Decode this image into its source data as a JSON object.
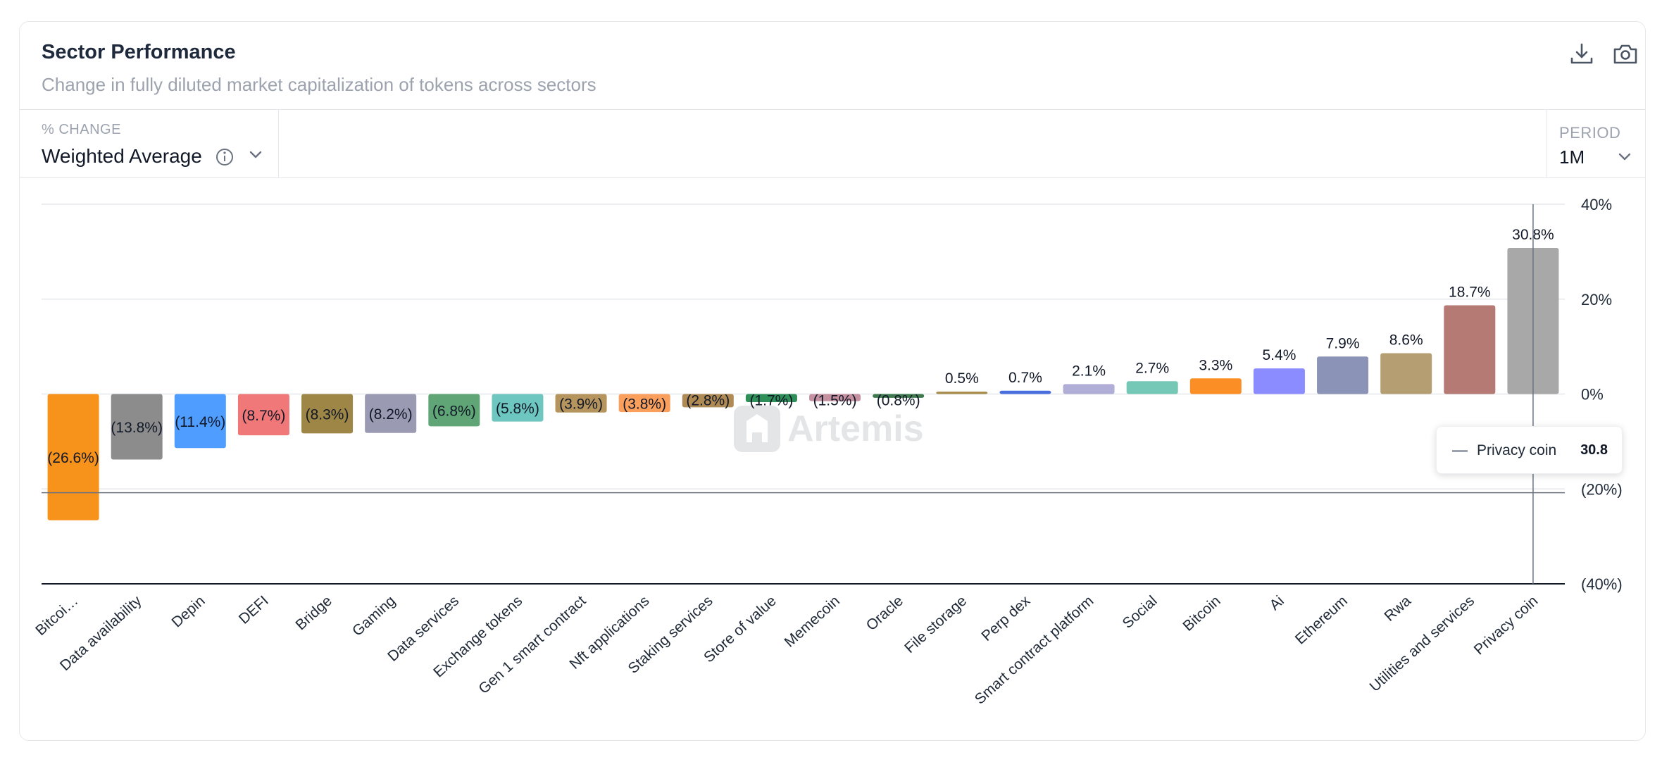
{
  "header": {
    "title": "Sector Performance",
    "subtitle": "Change in fully diluted market capitalization of tokens across sectors",
    "download_icon": "download-icon",
    "camera_icon": "camera-icon"
  },
  "controls": {
    "change_label": "% CHANGE",
    "change_value": "Weighted Average",
    "period_label": "PERIOD",
    "period_value": "1M"
  },
  "watermark": "Artemis",
  "tooltip": {
    "name": "Privacy coin",
    "value": "30.8"
  },
  "chart_data": {
    "type": "bar",
    "title": "Sector Performance",
    "categories": [
      "Bitcoi…",
      "Data availability",
      "Depin",
      "DEFI",
      "Bridge",
      "Gaming",
      "Data services",
      "Exchange tokens",
      "Gen 1 smart contract",
      "Nft applications",
      "Staking services",
      "Store of value",
      "Memecoin",
      "Oracle",
      "File storage",
      "Perp dex",
      "Smart contract platform",
      "Social",
      "Bitcoin",
      "Ai",
      "Ethereum",
      "Rwa",
      "Utilities and services",
      "Privacy coin"
    ],
    "values": [
      -26.6,
      -13.8,
      -11.4,
      -8.7,
      -8.3,
      -8.2,
      -6.8,
      -5.8,
      -3.9,
      -3.8,
      -2.8,
      -1.7,
      -1.5,
      -0.8,
      0.5,
      0.7,
      2.1,
      2.7,
      3.3,
      5.4,
      7.9,
      8.6,
      18.7,
      30.8
    ],
    "labels": [
      "(26.6%)",
      "(13.8%)",
      "(11.4%)",
      "(8.7%)",
      "(8.3%)",
      "(8.2%)",
      "(6.8%)",
      "(5.8%)",
      "(3.9%)",
      "(3.8%)",
      "(2.8%)",
      "(1.7%)",
      "(1.5%)",
      "(0.8%)",
      "0.5%",
      "0.7%",
      "2.1%",
      "2.7%",
      "3.3%",
      "5.4%",
      "7.9%",
      "8.6%",
      "18.7%",
      "30.8%"
    ],
    "colors": [
      "#f7931a",
      "#8c8c8c",
      "#4f9dff",
      "#f07878",
      "#9e8646",
      "#9a9ab2",
      "#5fa575",
      "#6ec6c1",
      "#b5955d",
      "#fb9f5c",
      "#b08a55",
      "#2f8f58",
      "#c590a0",
      "#3f7a4f",
      "#a88c4c",
      "#4a6ee0",
      "#b0aed6",
      "#76c8b6",
      "#fb8f25",
      "#8b8cff",
      "#8b93b6",
      "#b59f72",
      "#b57a74",
      "#a8a8a8"
    ],
    "y_ticks": [
      40,
      20,
      0,
      -20,
      -40
    ],
    "y_tick_labels": [
      "40%",
      "20%",
      "0%",
      "(20%)",
      "(40%)"
    ],
    "ylim": [
      -40,
      40
    ],
    "grid": true,
    "crosshair_category": "Privacy coin",
    "crosshair_y": -20.8
  }
}
